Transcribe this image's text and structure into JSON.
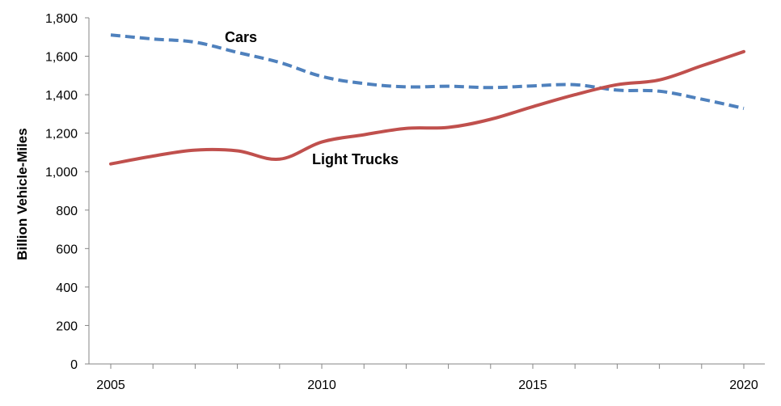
{
  "chart_data": {
    "type": "line",
    "title": "",
    "xlabel": "",
    "ylabel": "Billion Vehicle-Miles",
    "x": [
      2005,
      2006,
      2007,
      2008,
      2009,
      2010,
      2011,
      2012,
      2013,
      2014,
      2015,
      2016,
      2017,
      2018,
      2019,
      2020
    ],
    "xlim": [
      2005,
      2020
    ],
    "ylim": [
      0,
      1800
    ],
    "xticks": [
      2005,
      2010,
      2015,
      2020
    ],
    "xtick_labels": [
      "2005",
      "2010",
      "2015",
      "2020"
    ],
    "yticks": [
      0,
      200,
      400,
      600,
      800,
      1000,
      1200,
      1400,
      1600,
      1800
    ],
    "ytick_labels": [
      "0",
      "200",
      "400",
      "600",
      "800",
      "1,000",
      "1,200",
      "1,400",
      "1,600",
      "1,800"
    ],
    "grid": false,
    "series": [
      {
        "name": "Cars",
        "label": "Cars",
        "style": "dashed",
        "color": "#4F81BD",
        "values": [
          1711,
          1690,
          1673,
          1620,
          1568,
          1495,
          1458,
          1441,
          1444,
          1437,
          1446,
          1452,
          1424,
          1418,
          1377,
          1329
        ]
      },
      {
        "name": "Light Trucks",
        "label": "Light Trucks",
        "style": "solid",
        "color": "#C0504D",
        "values": [
          1040,
          1081,
          1112,
          1108,
          1065,
          1154,
          1192,
          1225,
          1230,
          1272,
          1338,
          1400,
          1452,
          1477,
          1550,
          1624
        ]
      }
    ]
  }
}
